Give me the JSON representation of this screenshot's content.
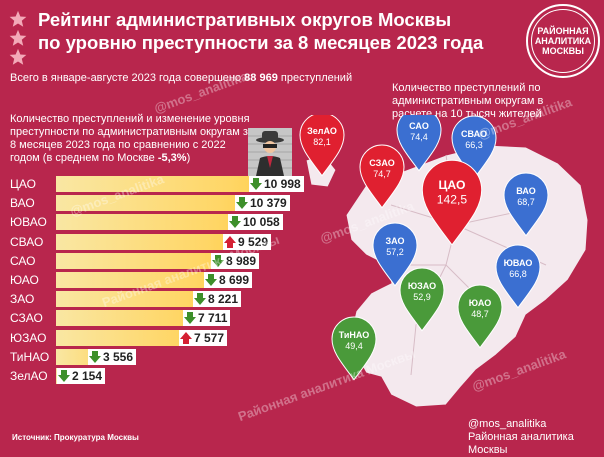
{
  "title": {
    "line1": "Рейтинг административных округов Москвы",
    "line2": "по уровню преступности за 8 месяцев 2023 года"
  },
  "badge": {
    "line1": "РАЙОННАЯ",
    "line2": "АНАЛИТИКА",
    "line3": "МОСКВЫ"
  },
  "total": {
    "prefix": "Всего в январе-августе 2023 года совершено ",
    "value": "88 969",
    "suffix": " преступлений"
  },
  "left_desc": {
    "text": "Количество преступлений и изменение уровня преступности по административным округам за 8 месяцев 2023 года по сравнению с 2022 годом (в среднем по Москве ",
    "value": "-5,3%",
    "suffix": ")"
  },
  "right_desc": "Количество преступлений по административным округам в расчете на 10 тысяч жителей",
  "watermark": "@mos_analitika",
  "watermark2": "Районная аналитика Москвы",
  "source": "Источник: Прокуратура Москвы",
  "footer": {
    "line1": "@mos_analitika",
    "line2": "Районная аналитика Москвы"
  },
  "colors": {
    "background": "#b8264d",
    "bar": "#ffd666",
    "down_arrow": "#3d8f2a",
    "up_arrow": "#d42033",
    "pin_red": "#e02030",
    "pin_blue": "#3b6fd1",
    "pin_green": "#4a9a3a",
    "map": "#f4e9ee"
  },
  "chart_data": [
    {
      "type": "bar",
      "title": "",
      "categories": [
        "ЦАО",
        "ВАО",
        "ЮВАО",
        "СВАО",
        "САО",
        "ЮАО",
        "ЗАО",
        "СЗАО",
        "ЮЗАО",
        "ТиНАО",
        "ЗелАО"
      ],
      "values": [
        10998,
        10379,
        10058,
        9529,
        8989,
        8699,
        8221,
        7711,
        7577,
        3556,
        2154
      ],
      "labels": [
        "10 998",
        "10 379",
        "10 058",
        "9 529",
        "8 989",
        "8 699",
        "8 221",
        "7 711",
        "7 577",
        "3 556",
        "2 154"
      ],
      "trend": [
        "down",
        "down",
        "down",
        "up",
        "down",
        "down",
        "down",
        "down",
        "up",
        "down",
        "down"
      ],
      "xlim": [
        0,
        11000
      ]
    },
    {
      "type": "map",
      "title": "",
      "categories": [
        "ЗелАО",
        "САО",
        "СВАО",
        "СЗАО",
        "ЦАО",
        "ВАО",
        "ЗАО",
        "ЮВАО",
        "ЮЗАО",
        "ЮАО",
        "ТиНАО"
      ],
      "values": [
        82.1,
        74.4,
        66.3,
        74.7,
        142.5,
        68.7,
        57.2,
        66.8,
        52.9,
        48.7,
        49.4
      ],
      "labels": [
        "82,1",
        "74,4",
        "66,3",
        "74,7",
        "142,5",
        "68,7",
        "57,2",
        "66,8",
        "52,9",
        "48,7",
        "49,4"
      ],
      "pin_color": [
        "red",
        "blue",
        "blue",
        "red",
        "red",
        "blue",
        "blue",
        "blue",
        "green",
        "green",
        "green"
      ]
    }
  ]
}
